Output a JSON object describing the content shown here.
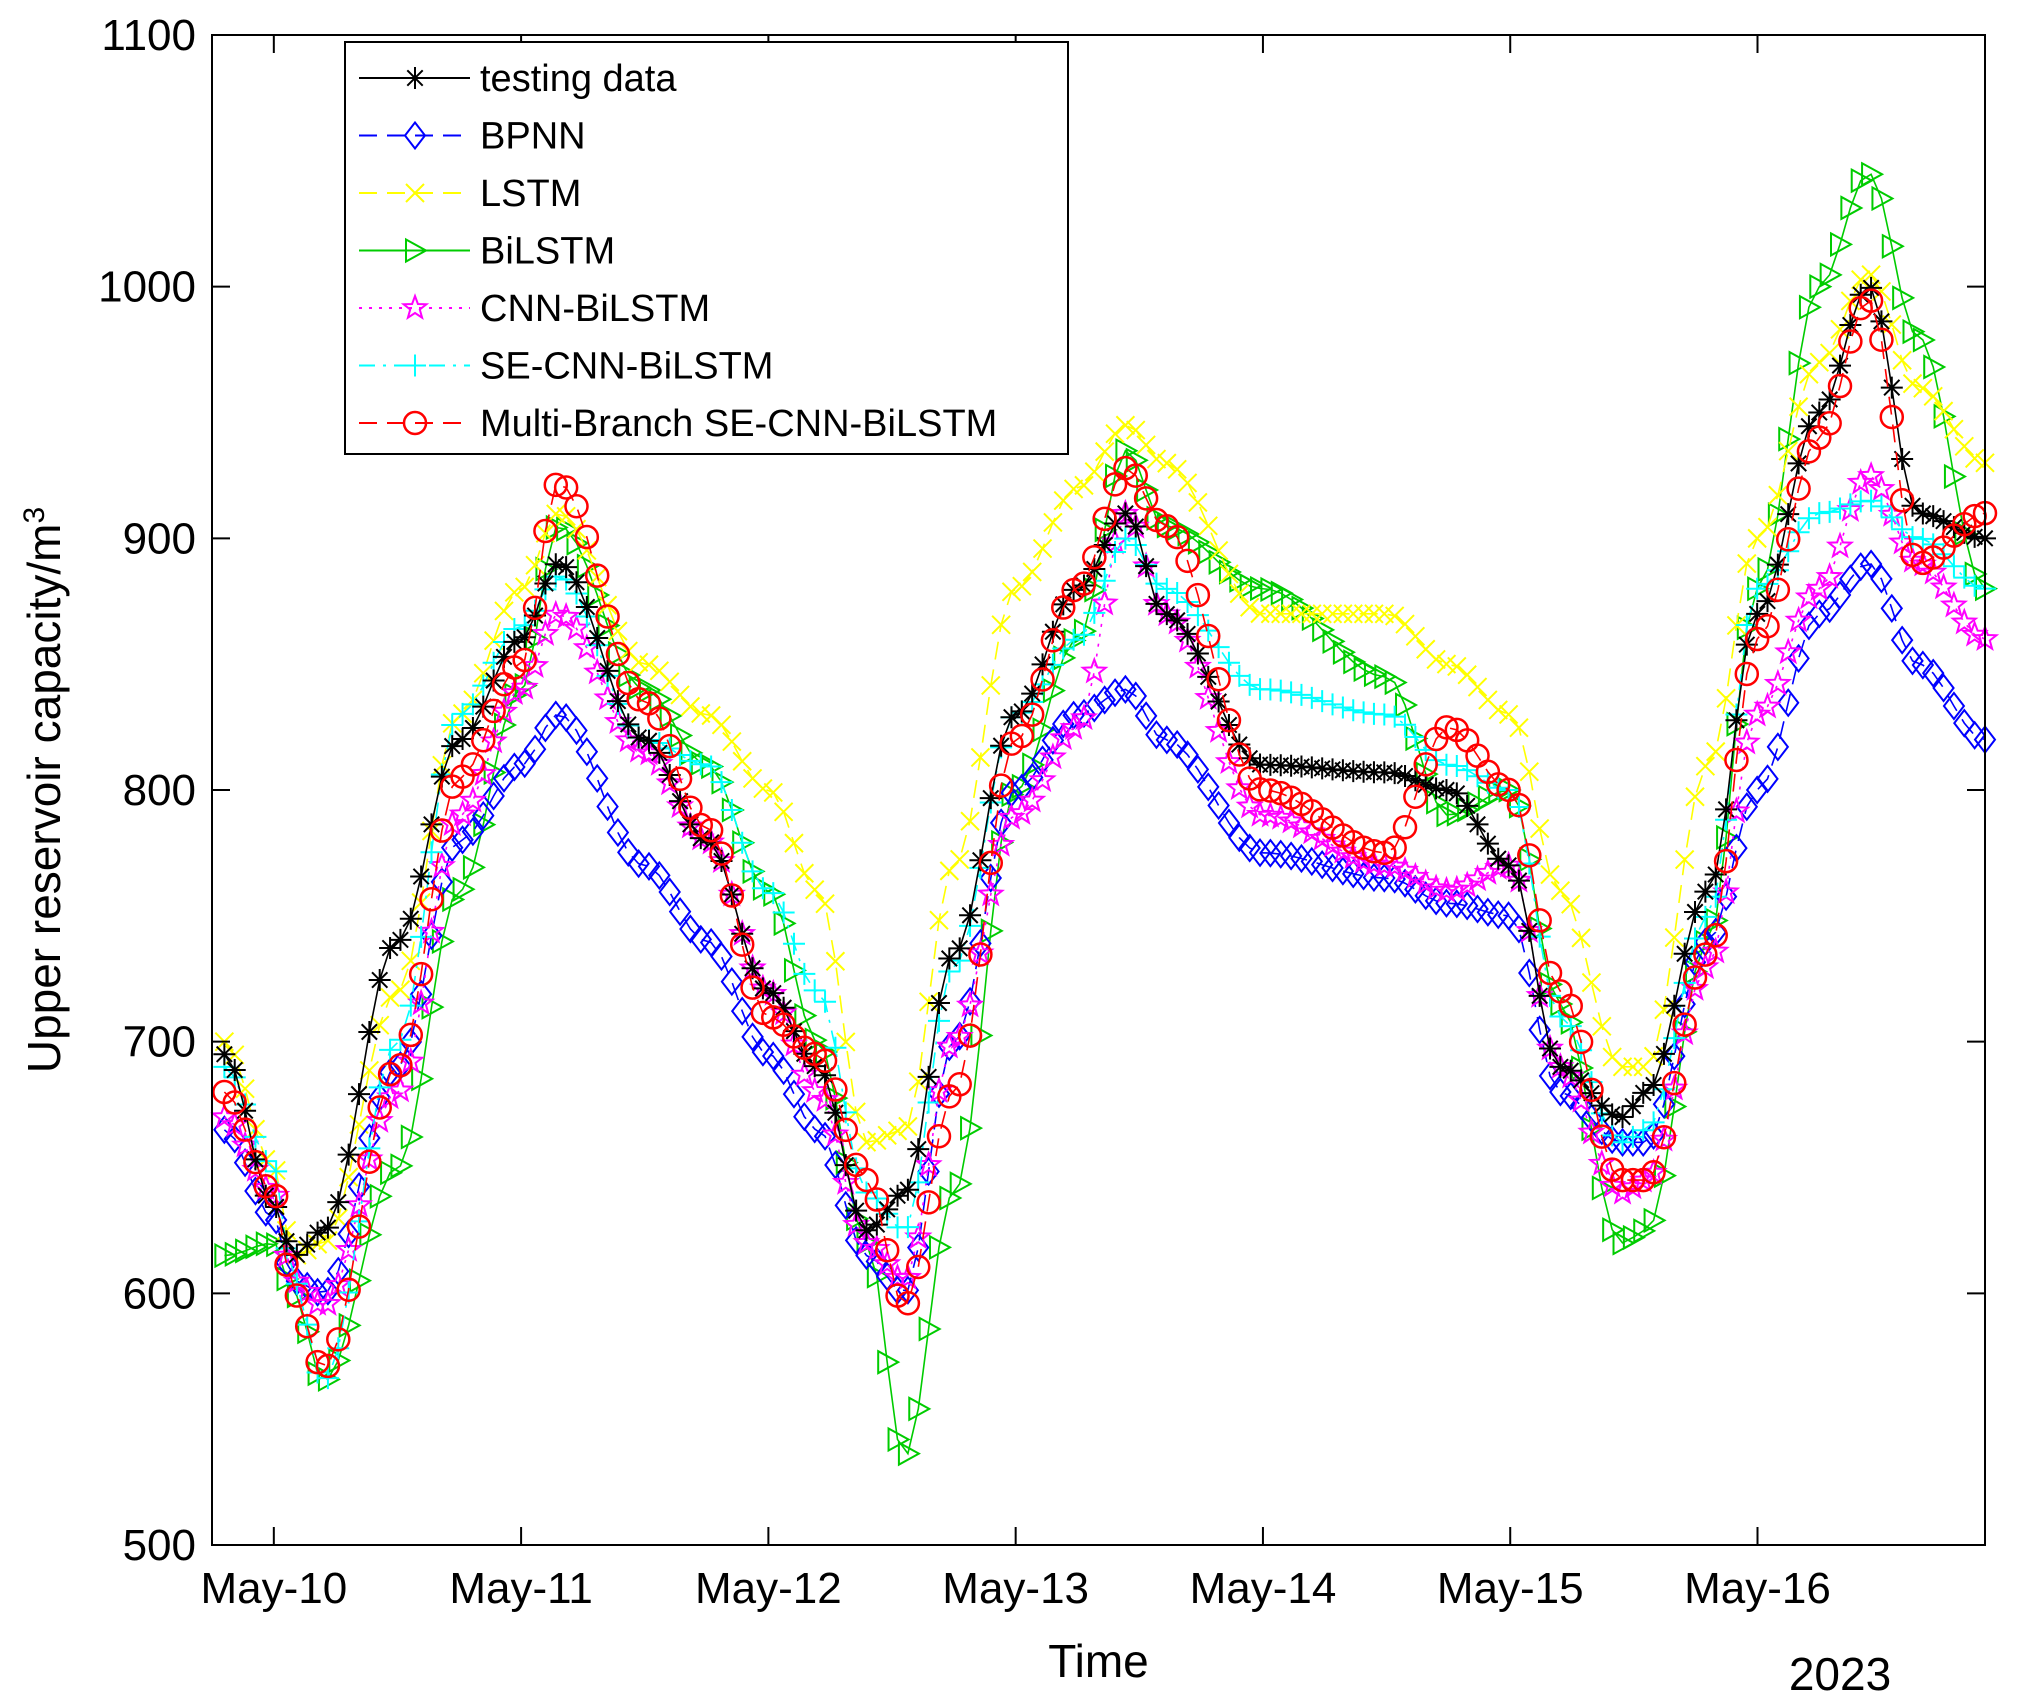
{
  "chart_data": {
    "type": "line",
    "title": "",
    "xlabel": "Time",
    "ylabel": "Upper reservoir capacity/m",
    "ylabel_superscript": "3",
    "year_label": "2023",
    "x_unit": "days from May-10 00:00",
    "xlim": [
      -0.25,
      6.92
    ],
    "ylim": [
      500,
      1100
    ],
    "x_ticks": [
      0,
      1,
      2,
      3,
      4,
      5,
      6
    ],
    "x_tick_labels": [
      "May-10",
      "May-11",
      "May-12",
      "May-13",
      "May-14",
      "May-15",
      "May-16"
    ],
    "y_ticks": [
      500,
      600,
      700,
      800,
      900,
      1000,
      1100
    ],
    "y_tick_labels": [
      "500",
      "600",
      "700",
      "800",
      "900",
      "1000",
      "1100"
    ],
    "legend_position": "top-left",
    "anchors_x": [
      -0.2,
      0.0,
      0.08,
      0.2,
      0.5,
      0.75,
      1.0,
      1.15,
      1.5,
      1.75,
      2.0,
      2.2,
      2.4,
      2.55,
      2.75,
      3.0,
      3.25,
      3.45,
      3.6,
      4.0,
      4.5,
      4.75,
      5.0,
      5.2,
      5.45,
      5.55,
      5.8,
      6.0,
      6.25,
      6.45,
      6.65,
      6.92
    ],
    "series": [
      {
        "name": "testing data",
        "color": "#000000",
        "marker": "asterisk",
        "dash": "solid",
        "values": [
          695,
          635,
          615,
          625,
          740,
          820,
          860,
          890,
          820,
          780,
          720,
          690,
          625,
          640,
          735,
          830,
          880,
          910,
          870,
          810,
          807,
          800,
          770,
          690,
          670,
          680,
          760,
          870,
          950,
          1000,
          910,
          900
        ]
      },
      {
        "name": "BPNN",
        "color": "#0000ff",
        "marker": "diamond",
        "dash": "dash",
        "values": [
          665,
          630,
          605,
          600,
          690,
          780,
          810,
          830,
          770,
          740,
          695,
          665,
          615,
          600,
          700,
          800,
          830,
          840,
          820,
          775,
          765,
          755,
          750,
          680,
          660,
          660,
          740,
          800,
          870,
          890,
          850,
          820
        ]
      },
      {
        "name": "LSTM",
        "color": "#ffff00",
        "marker": "cross",
        "dash": "dash",
        "values": [
          700,
          650,
          615,
          620,
          720,
          830,
          880,
          910,
          850,
          830,
          800,
          760,
          660,
          665,
          770,
          880,
          920,
          945,
          930,
          870,
          870,
          850,
          830,
          760,
          690,
          690,
          810,
          900,
          970,
          1005,
          960,
          930
        ]
      },
      {
        "name": "BiLSTM",
        "color": "#00cc00",
        "marker": "triangle-right",
        "dash": "solid",
        "values": [
          615,
          620,
          600,
          565,
          650,
          760,
          840,
          905,
          840,
          810,
          760,
          700,
          620,
          535,
          640,
          800,
          860,
          935,
          905,
          880,
          845,
          790,
          800,
          715,
          620,
          625,
          740,
          880,
          1000,
          1045,
          980,
          880
        ]
      },
      {
        "name": "CNN-BiLSTM",
        "color": "#ff00ff",
        "marker": "pentagram",
        "dash": "dotted",
        "values": [
          670,
          640,
          605,
          595,
          680,
          790,
          840,
          870,
          815,
          780,
          720,
          680,
          620,
          605,
          700,
          790,
          825,
          910,
          870,
          790,
          770,
          760,
          770,
          690,
          640,
          645,
          730,
          830,
          880,
          925,
          890,
          860
        ]
      },
      {
        "name": "SE-CNN-BiLSTM",
        "color": "#00ffff",
        "marker": "plus",
        "dash": "dashdot",
        "values": [
          690,
          650,
          605,
          565,
          700,
          830,
          865,
          885,
          820,
          810,
          760,
          720,
          640,
          625,
          730,
          830,
          860,
          900,
          880,
          840,
          830,
          810,
          800,
          710,
          660,
          665,
          750,
          880,
          910,
          915,
          900,
          880
        ]
      },
      {
        "name": "Multi-Branch SE-CNN-BiLSTM",
        "color": "#ff0000",
        "marker": "circle",
        "dash": "dash",
        "values": [
          680,
          640,
          600,
          570,
          690,
          805,
          850,
          922,
          835,
          785,
          710,
          695,
          645,
          595,
          680,
          820,
          880,
          928,
          905,
          800,
          775,
          825,
          800,
          720,
          645,
          645,
          735,
          860,
          940,
          995,
          890,
          910
        ]
      }
    ]
  }
}
